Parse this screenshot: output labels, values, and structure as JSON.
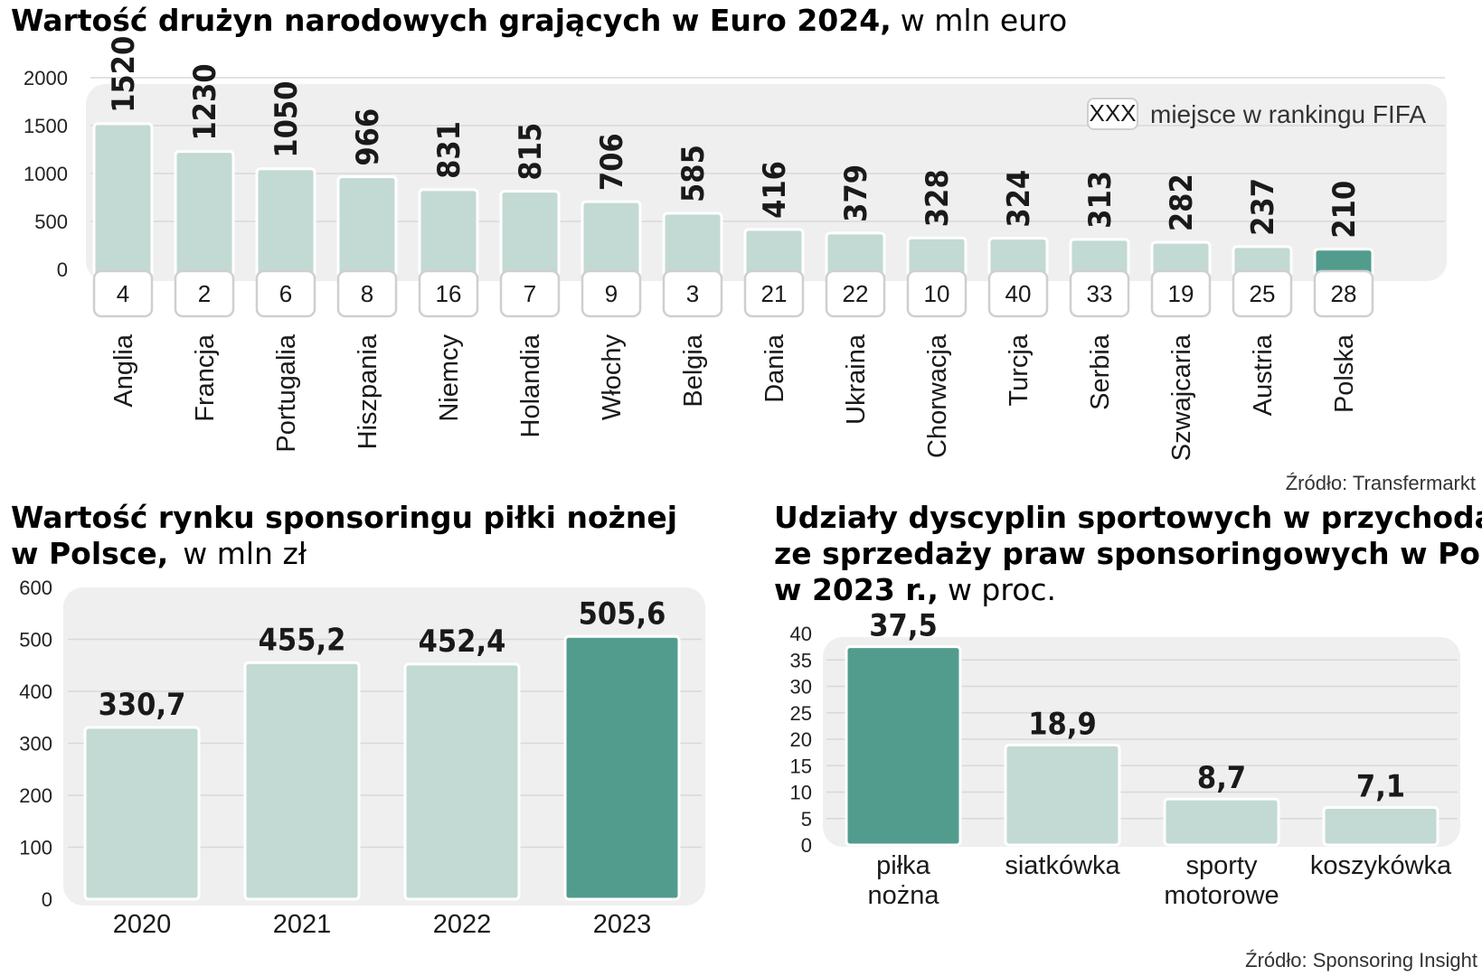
{
  "colors": {
    "bar": "#c2dad3",
    "highlight": "#529c8e",
    "bar_stroke": "#ffffff",
    "panel": "#efefef",
    "grid": "#d8d8d8"
  },
  "chart_data": [
    {
      "id": "euro",
      "type": "bar",
      "title": "Wartość drużyn narodowych grających w Euro 2024,",
      "subtitle": "w mln euro",
      "categories": [
        "Anglia",
        "Francja",
        "Portugalia",
        "Hiszpania",
        "Niemcy",
        "Holandia",
        "Włochy",
        "Belgia",
        "Dania",
        "Ukraina",
        "Chorwacja",
        "Turcja",
        "Serbia",
        "Szwajcaria",
        "Austria",
        "Polska"
      ],
      "values": [
        1520,
        1230,
        1050,
        966,
        831,
        815,
        706,
        585,
        416,
        379,
        328,
        324,
        313,
        282,
        237,
        210
      ],
      "value_labels": [
        "1520",
        "1230",
        "1050",
        "966",
        "831",
        "815",
        "706",
        "585",
        "416",
        "379",
        "328",
        "324",
        "313",
        "282",
        "237",
        "210"
      ],
      "fifa_rank": [
        "4",
        "2",
        "6",
        "8",
        "16",
        "7",
        "9",
        "3",
        "21",
        "22",
        "10",
        "40",
        "33",
        "19",
        "25",
        "28"
      ],
      "highlight": [
        15
      ],
      "ylim": [
        0,
        2000
      ],
      "yticks": [
        "0",
        "500",
        "1000",
        "1500",
        "2000"
      ],
      "ytick_values": [
        0,
        500,
        1000,
        1500,
        2000
      ],
      "legend": {
        "box": "XXX",
        "label": "miejsce w rankingu FIFA",
        "position": "top-right"
      },
      "source": "Źródło: Transfermarkt",
      "grid": true
    },
    {
      "id": "sponsor",
      "type": "bar",
      "title_line1": "Wartość rynku sponsoringu piłki nożnej",
      "title_line2": "w Polsce,",
      "subtitle": "w mln zł",
      "categories": [
        "2020",
        "2021",
        "2022",
        "2023"
      ],
      "values": [
        330.7,
        455.2,
        452.4,
        505.6
      ],
      "value_labels": [
        "330,7",
        "455,2",
        "452,4",
        "505,6"
      ],
      "highlight": [
        3
      ],
      "ylim": [
        0,
        600
      ],
      "yticks": [
        "0",
        "100",
        "200",
        "300",
        "400",
        "500",
        "600"
      ],
      "ytick_values": [
        0,
        100,
        200,
        300,
        400,
        500,
        600
      ],
      "grid": true
    },
    {
      "id": "shares",
      "type": "bar",
      "title_line1": "Udziały dyscyplin sportowych w przychodach",
      "title_line2": "ze sprzedaży praw sponsoringowych w Polsce",
      "title_line3": "w 2023 r.,",
      "subtitle": "w proc.",
      "categories": [
        [
          "piłka",
          "nożna"
        ],
        [
          "siatkówka"
        ],
        [
          "sporty",
          "motorowe"
        ],
        [
          "koszykówka"
        ]
      ],
      "values": [
        37.5,
        18.9,
        8.7,
        7.1
      ],
      "value_labels": [
        "37,5",
        "18,9",
        "8,7",
        "7,1"
      ],
      "highlight": [
        0
      ],
      "ylim": [
        0,
        40
      ],
      "yticks": [
        "0",
        "5",
        "10",
        "15",
        "20",
        "25",
        "30",
        "35",
        "40"
      ],
      "ytick_values": [
        0,
        5,
        10,
        15,
        20,
        25,
        30,
        35,
        40
      ],
      "source": "Źródło: Sponsoring Insight",
      "grid": true
    }
  ]
}
